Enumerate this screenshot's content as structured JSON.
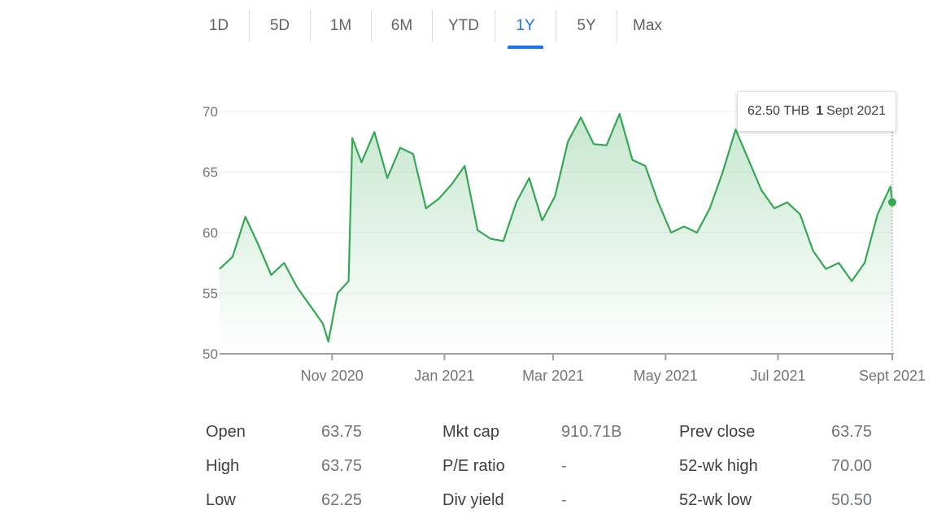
{
  "tabs": [
    {
      "label": "1D"
    },
    {
      "label": "5D"
    },
    {
      "label": "1M"
    },
    {
      "label": "6M"
    },
    {
      "label": "YTD"
    },
    {
      "label": "1Y",
      "active": true
    },
    {
      "label": "5Y"
    },
    {
      "label": "Max"
    }
  ],
  "colors": {
    "accent": "#1a73e8",
    "line": "#34a853",
    "fill": "#e6f4ea",
    "text": "#3c4043",
    "muted": "#70757a"
  },
  "tooltip": {
    "price": "62.50 THB",
    "day": "1",
    "month_year": "Sept 2021"
  },
  "chart_data": {
    "type": "line",
    "ylim": [
      50,
      70
    ],
    "yticks": [
      "70",
      "65",
      "60",
      "55",
      "50"
    ],
    "xlabels": [
      "Nov 2020",
      "Jan 2021",
      "Mar 2021",
      "May 2021",
      "Jul 2021",
      "Sept 2021"
    ],
    "grid": true,
    "series": [
      {
        "x": [
          "2020-09-01",
          "2020-09-08",
          "2020-09-15",
          "2020-09-22",
          "2020-09-29",
          "2020-10-06",
          "2020-10-13",
          "2020-10-20",
          "2020-10-27",
          "2020-10-30",
          "2020-11-04",
          "2020-11-10",
          "2020-11-12",
          "2020-11-17",
          "2020-11-24",
          "2020-12-01",
          "2020-12-08",
          "2020-12-15",
          "2020-12-22",
          "2020-12-29",
          "2021-01-05",
          "2021-01-12",
          "2021-01-19",
          "2021-01-26",
          "2021-02-02",
          "2021-02-09",
          "2021-02-16",
          "2021-02-23",
          "2021-03-02",
          "2021-03-09",
          "2021-03-16",
          "2021-03-23",
          "2021-03-30",
          "2021-04-06",
          "2021-04-13",
          "2021-04-20",
          "2021-04-27",
          "2021-05-04",
          "2021-05-11",
          "2021-05-18",
          "2021-05-25",
          "2021-06-01",
          "2021-06-08",
          "2021-06-15",
          "2021-06-22",
          "2021-06-29",
          "2021-07-06",
          "2021-07-13",
          "2021-07-20",
          "2021-07-27",
          "2021-08-03",
          "2021-08-10",
          "2021-08-17",
          "2021-08-24",
          "2021-08-31",
          "2021-09-01"
        ],
        "y": [
          57.0,
          58.0,
          61.3,
          59.0,
          56.5,
          57.5,
          55.5,
          54.0,
          52.5,
          51.0,
          55.0,
          56.0,
          67.8,
          65.8,
          68.3,
          64.5,
          67.0,
          66.5,
          62.0,
          62.8,
          64.0,
          65.5,
          60.2,
          59.5,
          59.3,
          62.5,
          64.5,
          61.0,
          63.0,
          67.5,
          69.5,
          67.3,
          67.2,
          69.8,
          66.0,
          65.5,
          62.5,
          60.0,
          60.5,
          60.0,
          62.0,
          65.0,
          68.5,
          66.0,
          63.5,
          62.0,
          62.5,
          61.5,
          58.5,
          57.0,
          57.5,
          56.0,
          57.5,
          61.5,
          63.8,
          62.5
        ]
      }
    ]
  },
  "stats": [
    {
      "label": "Open",
      "value": "63.75"
    },
    {
      "label": "High",
      "value": "63.75"
    },
    {
      "label": "Low",
      "value": "62.25"
    },
    {
      "label": "Mkt cap",
      "value": "910.71B"
    },
    {
      "label": "P/E ratio",
      "value": "-"
    },
    {
      "label": "Div yield",
      "value": "-"
    },
    {
      "label": "Prev close",
      "value": "63.75"
    },
    {
      "label": "52-wk high",
      "value": "70.00"
    },
    {
      "label": "52-wk low",
      "value": "50.50"
    }
  ]
}
